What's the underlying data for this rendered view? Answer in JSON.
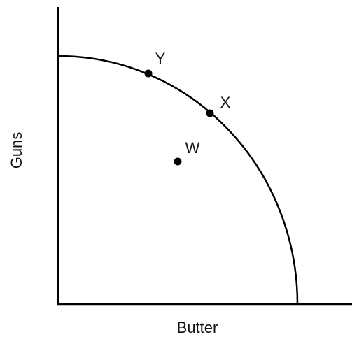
{
  "axes": {
    "x_label": "Butter",
    "y_label": "Guns"
  },
  "points": [
    {
      "label": "Y"
    },
    {
      "label": "X"
    },
    {
      "label": "W"
    }
  ]
}
